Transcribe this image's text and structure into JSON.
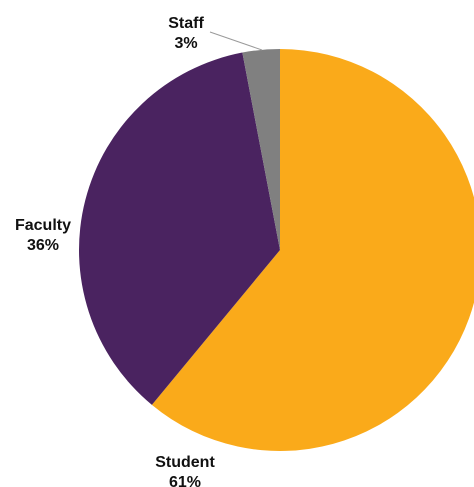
{
  "chart_data": {
    "type": "pie",
    "title": "",
    "start_angle_deg": 0,
    "direction": "clockwise",
    "slices": [
      {
        "label": "Student",
        "value": 61,
        "value_label": "61%",
        "color": "#FAAA1A"
      },
      {
        "label": "Faculty",
        "value": 36,
        "value_label": "36%",
        "color": "#4A2360"
      },
      {
        "label": "Staff",
        "value": 3,
        "value_label": "3%",
        "color": "#808080"
      }
    ],
    "legend": "none",
    "label_color": "#111111",
    "leader_line_color": "#9a9a9a"
  }
}
